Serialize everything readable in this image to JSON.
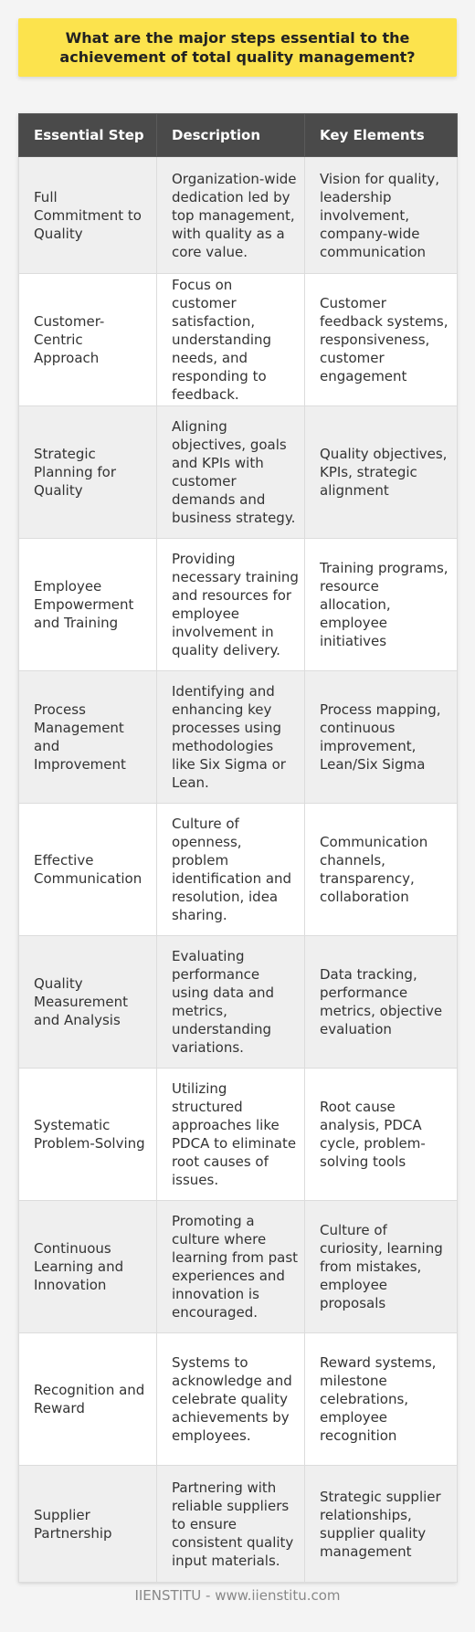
{
  "title": "What are the major steps essential to the achievement of total quality management?",
  "table": {
    "headers": [
      "Essential Step",
      "Description",
      "Key Elements"
    ],
    "rows": [
      {
        "step": "Full Commitment to Quality",
        "description": "Organization-wide dedication led by top management, with quality as a core value.",
        "elements": "Vision for quality, leadership involvement, company-wide communication"
      },
      {
        "step": "Customer-Centric Approach",
        "description": "Focus on customer satisfaction, understanding needs, and responding to feedback.",
        "elements": "Customer feedback systems, responsiveness, customer engagement"
      },
      {
        "step": "Strategic Planning for Quality",
        "description": "Aligning objectives, goals and KPIs with customer demands and business strategy.",
        "elements": "Quality objectives, KPIs, strategic alignment"
      },
      {
        "step": "Employee Empowerment and Training",
        "description": "Providing necessary training and resources for employee involvement in quality delivery.",
        "elements": "Training programs, resource allocation, employee initiatives"
      },
      {
        "step": "Process Management and Improvement",
        "description": "Identifying and enhancing key processes using methodologies like Six Sigma or Lean.",
        "elements": "Process mapping, continuous improvement, Lean/Six Sigma"
      },
      {
        "step": "Effective Communication",
        "description": "Culture of openness, problem identification and resolution, idea sharing.",
        "elements": "Communication channels, transparency, collaboration"
      },
      {
        "step": "Quality Measurement and Analysis",
        "description": "Evaluating performance using data and metrics, understanding variations.",
        "elements": "Data tracking, performance metrics, objective evaluation"
      },
      {
        "step": "Systematic Problem-Solving",
        "description": "Utilizing structured approaches like PDCA to eliminate root causes of issues.",
        "elements": "Root cause analysis, PDCA cycle, problem-solving tools"
      },
      {
        "step": "Continuous Learning and Innovation",
        "description": "Promoting a culture where learning from past experiences and innovation is encouraged.",
        "elements": "Culture of curiosity, learning from mistakes, employee proposals"
      },
      {
        "step": "Recognition and Reward",
        "description": "Systems to acknowledge and celebrate quality achievements by employees.",
        "elements": "Reward systems, milestone celebrations, employee recognition"
      },
      {
        "step": "Supplier Partnership",
        "description": "Partnering with reliable suppliers to ensure consistent quality input materials.",
        "elements": "Strategic supplier relationships, supplier quality management"
      }
    ]
  },
  "footer": "IIENSTITU - www.iienstitu.com",
  "colors": {
    "title_bg": "#fce34d",
    "header_bg": "#4a4a4a",
    "row_alt_bg": "#efefef"
  }
}
